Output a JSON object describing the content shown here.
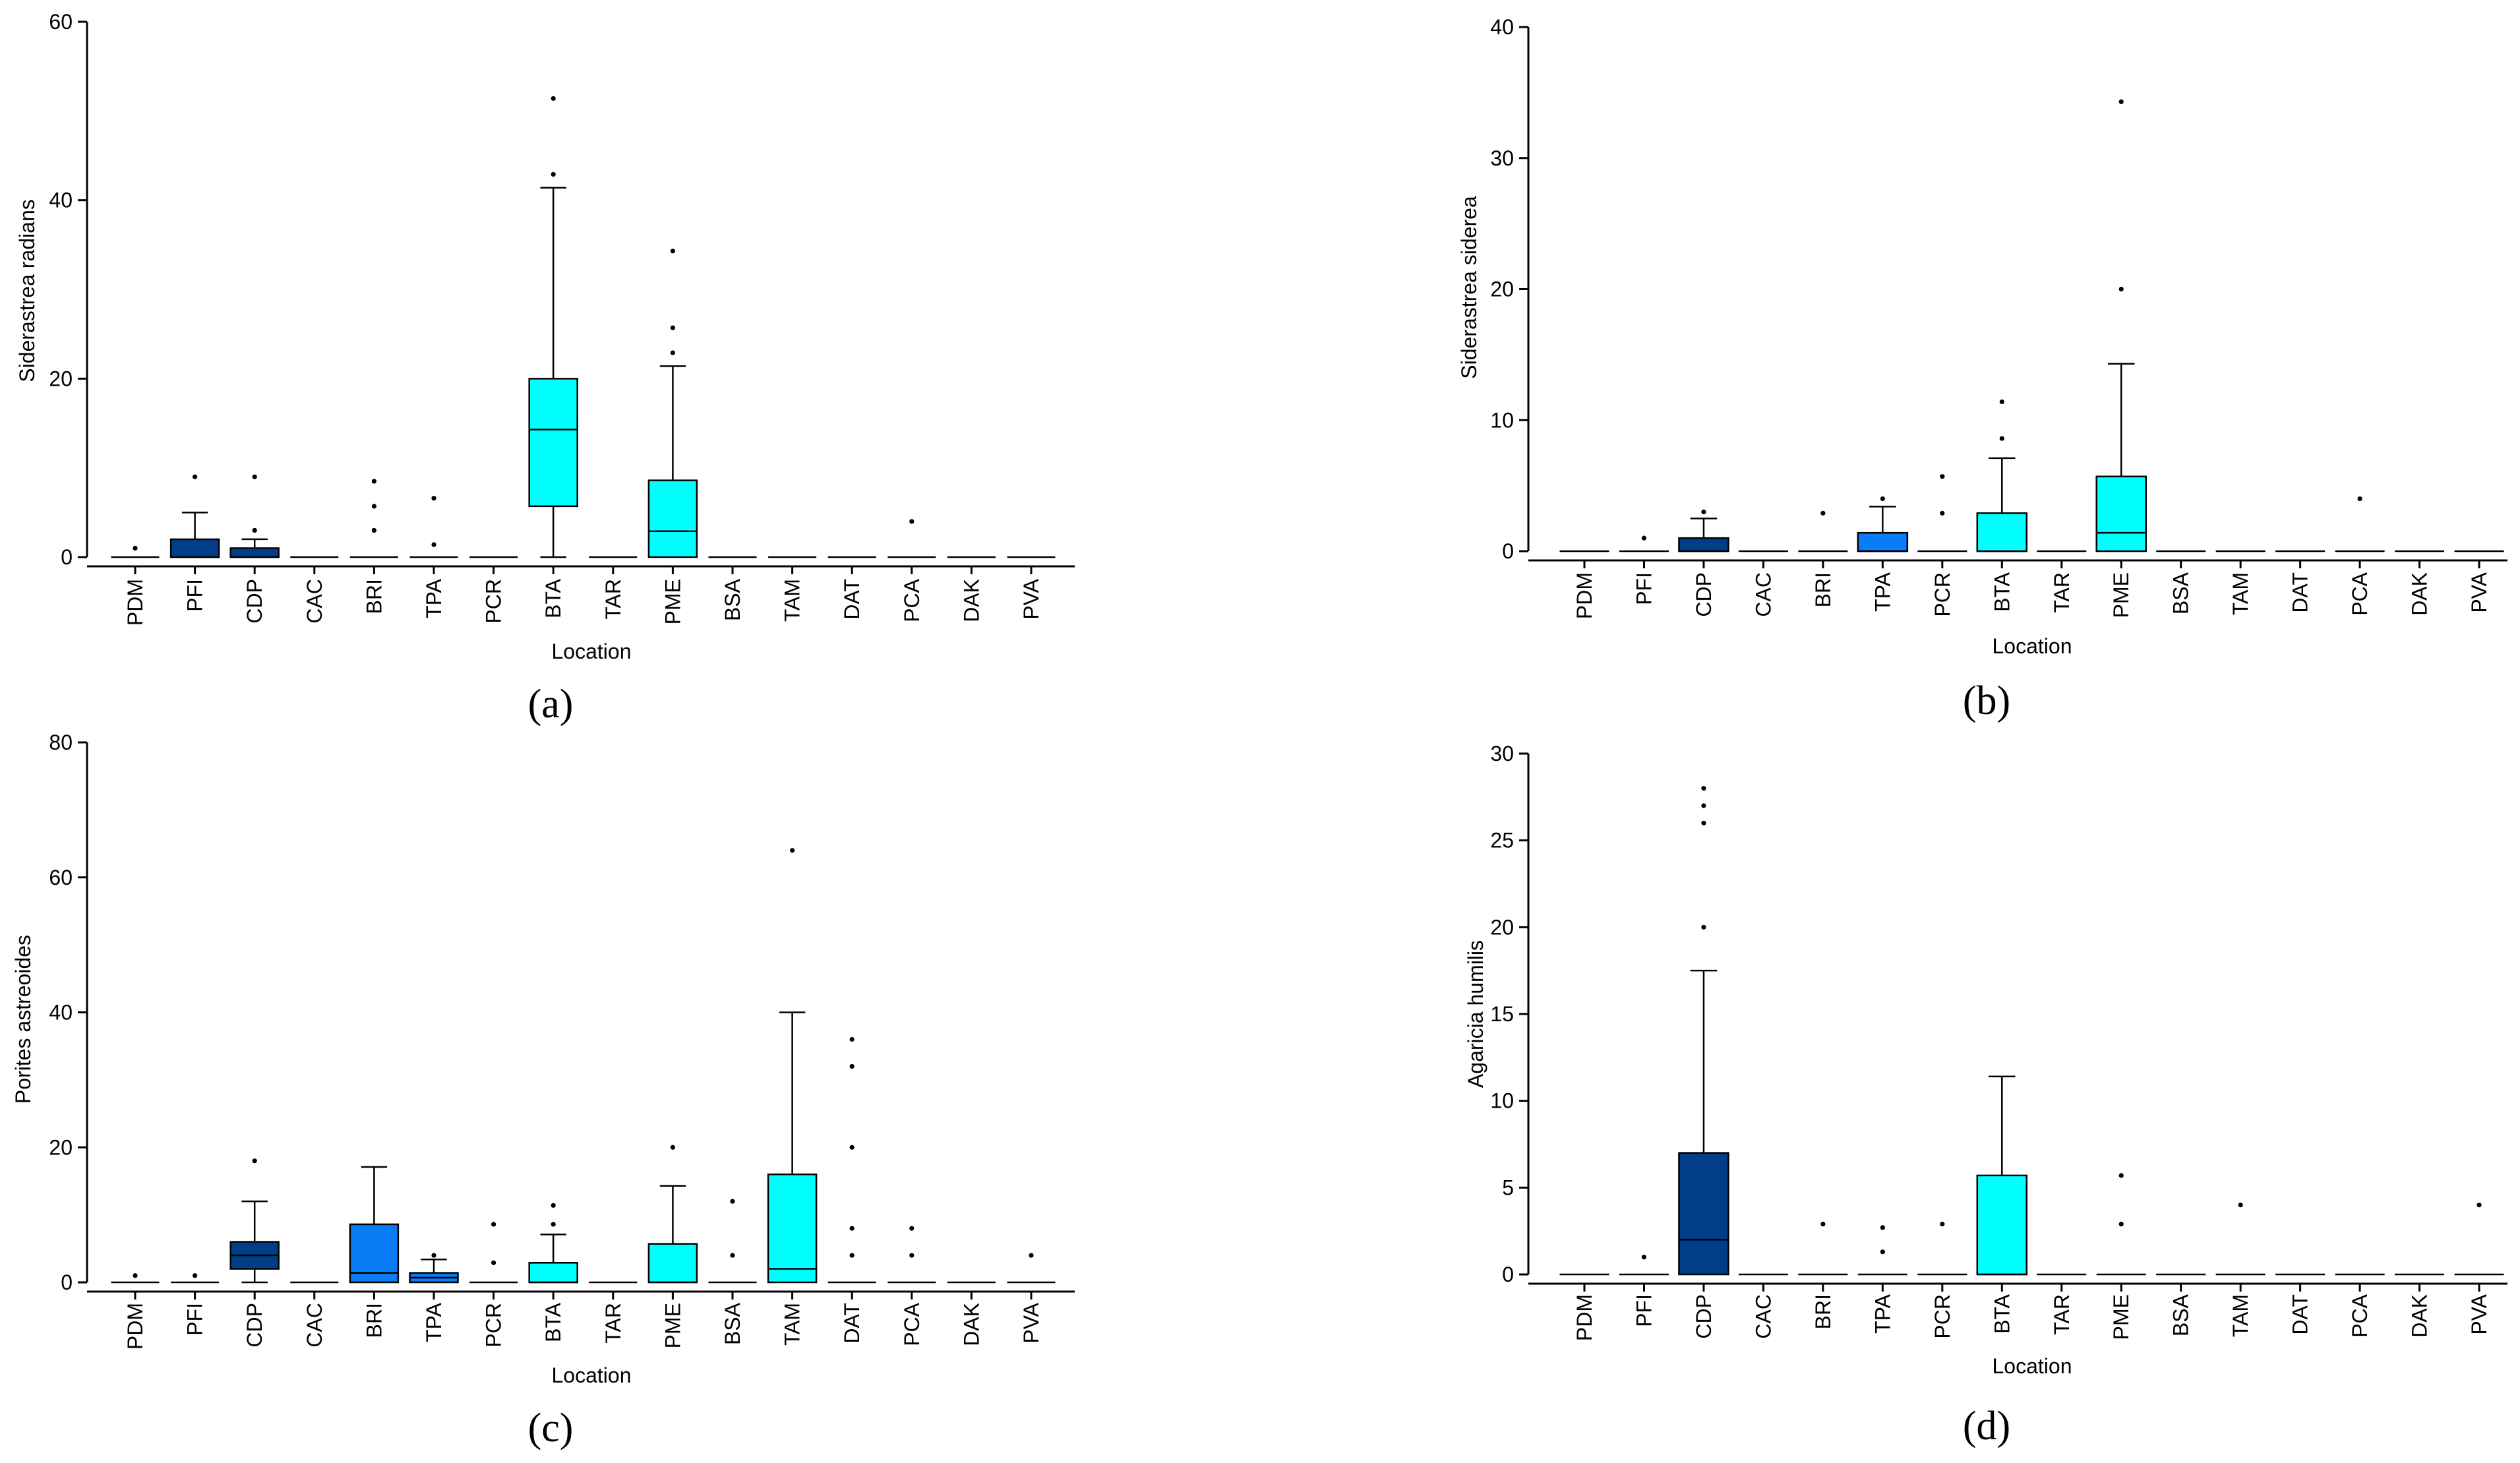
{
  "colors": {
    "dark_blue": "#003F87",
    "mid_blue": "#0A7CF5",
    "cyan": "#00FFFF",
    "line": "#000000"
  },
  "chart_data": [
    {
      "panel_label": "(a)",
      "type": "box",
      "title": "",
      "xlabel": "Location",
      "ylabel": "Siderastrea radians",
      "ylim": [
        0,
        60
      ],
      "yticks": [
        0,
        20,
        40,
        60
      ],
      "ytick_labels": [
        "0",
        "20",
        "40",
        "60"
      ],
      "categories": [
        "PDM",
        "PFI",
        "CDP",
        "CAC",
        "BRI",
        "TPA",
        "PCR",
        "BTA",
        "TAR",
        "PME",
        "BSA",
        "TAM",
        "DAT",
        "PCA",
        "DAK",
        "PVA"
      ],
      "boxes": [
        {
          "cat": "PDM",
          "q1": 0,
          "median": 0,
          "q3": 0,
          "whisker_low": 0,
          "whisker_high": 0,
          "outliers": [
            1
          ],
          "color": "dark_blue"
        },
        {
          "cat": "PFI",
          "q1": 0,
          "median": 0,
          "q3": 2,
          "whisker_low": 0,
          "whisker_high": 5,
          "outliers": [
            9
          ],
          "color": "dark_blue"
        },
        {
          "cat": "CDP",
          "q1": 0,
          "median": 0,
          "q3": 1,
          "whisker_low": 0,
          "whisker_high": 2,
          "outliers": [
            3,
            9
          ],
          "color": "dark_blue"
        },
        {
          "cat": "CAC",
          "q1": 0,
          "median": 0,
          "q3": 0,
          "whisker_low": 0,
          "whisker_high": 0,
          "outliers": [],
          "color": "dark_blue"
        },
        {
          "cat": "BRI",
          "q1": 0,
          "median": 0,
          "q3": 0,
          "whisker_low": 0,
          "whisker_high": 0,
          "outliers": [
            3,
            5.7,
            8.5
          ],
          "color": "mid_blue"
        },
        {
          "cat": "TPA",
          "q1": 0,
          "median": 0,
          "q3": 0,
          "whisker_low": 0,
          "whisker_high": 0,
          "outliers": [
            1.4,
            6.6
          ],
          "color": "mid_blue"
        },
        {
          "cat": "PCR",
          "q1": 0,
          "median": 0,
          "q3": 0,
          "whisker_low": 0,
          "whisker_high": 0,
          "outliers": [],
          "color": "mid_blue"
        },
        {
          "cat": "BTA",
          "q1": 5.7,
          "median": 14.3,
          "q3": 20,
          "whisker_low": 0,
          "whisker_high": 41.4,
          "outliers": [
            42.9,
            51.4
          ],
          "color": "cyan"
        },
        {
          "cat": "TAR",
          "q1": 0,
          "median": 0,
          "q3": 0,
          "whisker_low": 0,
          "whisker_high": 0,
          "outliers": [],
          "color": "cyan"
        },
        {
          "cat": "PME",
          "q1": 0,
          "median": 2.9,
          "q3": 8.6,
          "whisker_low": 0,
          "whisker_high": 21.4,
          "outliers": [
            22.9,
            25.7,
            34.3
          ],
          "color": "cyan"
        },
        {
          "cat": "BSA",
          "q1": 0,
          "median": 0,
          "q3": 0,
          "whisker_low": 0,
          "whisker_high": 0,
          "outliers": [],
          "color": "cyan"
        },
        {
          "cat": "TAM",
          "q1": 0,
          "median": 0,
          "q3": 0,
          "whisker_low": 0,
          "whisker_high": 0,
          "outliers": [],
          "color": "cyan"
        },
        {
          "cat": "DAT",
          "q1": 0,
          "median": 0,
          "q3": 0,
          "whisker_low": 0,
          "whisker_high": 0,
          "outliers": [],
          "color": "cyan"
        },
        {
          "cat": "PCA",
          "q1": 0,
          "median": 0,
          "q3": 0,
          "whisker_low": 0,
          "whisker_high": 0,
          "outliers": [
            4
          ],
          "color": "cyan"
        },
        {
          "cat": "DAK",
          "q1": 0,
          "median": 0,
          "q3": 0,
          "whisker_low": 0,
          "whisker_high": 0,
          "outliers": [],
          "color": "cyan"
        },
        {
          "cat": "PVA",
          "q1": 0,
          "median": 0,
          "q3": 0,
          "whisker_low": 0,
          "whisker_high": 0,
          "outliers": [],
          "color": "cyan"
        }
      ]
    },
    {
      "panel_label": "(b)",
      "type": "box",
      "title": "",
      "xlabel": "Location",
      "ylabel": "Siderastrea siderea",
      "ylim": [
        0,
        40
      ],
      "yticks": [
        0,
        10,
        20,
        30,
        40
      ],
      "ytick_labels": [
        "0",
        "10",
        "20",
        "30",
        "40"
      ],
      "categories": [
        "PDM",
        "PFI",
        "CDP",
        "CAC",
        "BRI",
        "TPA",
        "PCR",
        "BTA",
        "TAR",
        "PME",
        "BSA",
        "TAM",
        "DAT",
        "PCA",
        "DAK",
        "PVA"
      ],
      "boxes": [
        {
          "cat": "PDM",
          "q1": 0,
          "median": 0,
          "q3": 0,
          "whisker_low": 0,
          "whisker_high": 0,
          "outliers": [],
          "color": "dark_blue"
        },
        {
          "cat": "PFI",
          "q1": 0,
          "median": 0,
          "q3": 0,
          "whisker_low": 0,
          "whisker_high": 0,
          "outliers": [
            1
          ],
          "color": "dark_blue"
        },
        {
          "cat": "CDP",
          "q1": 0,
          "median": 0,
          "q3": 1,
          "whisker_low": 0,
          "whisker_high": 2.5,
          "outliers": [
            3
          ],
          "color": "dark_blue"
        },
        {
          "cat": "CAC",
          "q1": 0,
          "median": 0,
          "q3": 0,
          "whisker_low": 0,
          "whisker_high": 0,
          "outliers": [],
          "color": "dark_blue"
        },
        {
          "cat": "BRI",
          "q1": 0,
          "median": 0,
          "q3": 0,
          "whisker_low": 0,
          "whisker_high": 0,
          "outliers": [
            2.9
          ],
          "color": "mid_blue"
        },
        {
          "cat": "TPA",
          "q1": 0,
          "median": 0,
          "q3": 1.4,
          "whisker_low": 0,
          "whisker_high": 3.4,
          "outliers": [
            4
          ],
          "color": "mid_blue"
        },
        {
          "cat": "PCR",
          "q1": 0,
          "median": 0,
          "q3": 0,
          "whisker_low": 0,
          "whisker_high": 0,
          "outliers": [
            2.9,
            5.7
          ],
          "color": "mid_blue"
        },
        {
          "cat": "BTA",
          "q1": 0,
          "median": 0,
          "q3": 2.9,
          "whisker_low": 0,
          "whisker_high": 7.1,
          "outliers": [
            8.6,
            11.4
          ],
          "color": "cyan"
        },
        {
          "cat": "TAR",
          "q1": 0,
          "median": 0,
          "q3": 0,
          "whisker_low": 0,
          "whisker_high": 0,
          "outliers": [],
          "color": "cyan"
        },
        {
          "cat": "PME",
          "q1": 0,
          "median": 1.4,
          "q3": 5.7,
          "whisker_low": 0,
          "whisker_high": 14.3,
          "outliers": [
            20,
            34.3
          ],
          "color": "cyan"
        },
        {
          "cat": "BSA",
          "q1": 0,
          "median": 0,
          "q3": 0,
          "whisker_low": 0,
          "whisker_high": 0,
          "outliers": [],
          "color": "cyan"
        },
        {
          "cat": "TAM",
          "q1": 0,
          "median": 0,
          "q3": 0,
          "whisker_low": 0,
          "whisker_high": 0,
          "outliers": [],
          "color": "cyan"
        },
        {
          "cat": "DAT",
          "q1": 0,
          "median": 0,
          "q3": 0,
          "whisker_low": 0,
          "whisker_high": 0,
          "outliers": [],
          "color": "cyan"
        },
        {
          "cat": "PCA",
          "q1": 0,
          "median": 0,
          "q3": 0,
          "whisker_low": 0,
          "whisker_high": 0,
          "outliers": [
            4
          ],
          "color": "cyan"
        },
        {
          "cat": "DAK",
          "q1": 0,
          "median": 0,
          "q3": 0,
          "whisker_low": 0,
          "whisker_high": 0,
          "outliers": [],
          "color": "cyan"
        },
        {
          "cat": "PVA",
          "q1": 0,
          "median": 0,
          "q3": 0,
          "whisker_low": 0,
          "whisker_high": 0,
          "outliers": [],
          "color": "cyan"
        }
      ]
    },
    {
      "panel_label": "(c)",
      "type": "box",
      "title": "",
      "xlabel": "Location",
      "ylabel": "Porites astreoides",
      "ylim": [
        0,
        80
      ],
      "yticks": [
        0,
        20,
        40,
        60,
        80
      ],
      "ytick_labels": [
        "0",
        "20",
        "40",
        "60",
        "80"
      ],
      "categories": [
        "PDM",
        "PFI",
        "CDP",
        "CAC",
        "BRI",
        "TPA",
        "PCR",
        "BTA",
        "TAR",
        "PME",
        "BSA",
        "TAM",
        "DAT",
        "PCA",
        "DAK",
        "PVA"
      ],
      "boxes": [
        {
          "cat": "PDM",
          "q1": 0,
          "median": 0,
          "q3": 0,
          "whisker_low": 0,
          "whisker_high": 0,
          "outliers": [
            1
          ],
          "color": "dark_blue"
        },
        {
          "cat": "PFI",
          "q1": 0,
          "median": 0,
          "q3": 0,
          "whisker_low": 0,
          "whisker_high": 0,
          "outliers": [
            1
          ],
          "color": "dark_blue"
        },
        {
          "cat": "CDP",
          "q1": 2,
          "median": 4,
          "q3": 6,
          "whisker_low": 0,
          "whisker_high": 12,
          "outliers": [
            18
          ],
          "color": "dark_blue"
        },
        {
          "cat": "CAC",
          "q1": 0,
          "median": 0,
          "q3": 0,
          "whisker_low": 0,
          "whisker_high": 0,
          "outliers": [],
          "color": "dark_blue"
        },
        {
          "cat": "BRI",
          "q1": 0,
          "median": 1.4,
          "q3": 8.6,
          "whisker_low": 0,
          "whisker_high": 17.1,
          "outliers": [],
          "color": "mid_blue"
        },
        {
          "cat": "TPA",
          "q1": 0,
          "median": 0.7,
          "q3": 1.4,
          "whisker_low": 0,
          "whisker_high": 3.4,
          "outliers": [
            4
          ],
          "color": "mid_blue"
        },
        {
          "cat": "PCR",
          "q1": 0,
          "median": 0,
          "q3": 0,
          "whisker_low": 0,
          "whisker_high": 0,
          "outliers": [
            2.9,
            8.6
          ],
          "color": "mid_blue"
        },
        {
          "cat": "BTA",
          "q1": 0,
          "median": 0,
          "q3": 2.9,
          "whisker_low": 0,
          "whisker_high": 7.1,
          "outliers": [
            8.6,
            11.4
          ],
          "color": "cyan"
        },
        {
          "cat": "TAR",
          "q1": 0,
          "median": 0,
          "q3": 0,
          "whisker_low": 0,
          "whisker_high": 0,
          "outliers": [],
          "color": "cyan"
        },
        {
          "cat": "PME",
          "q1": 0,
          "median": 0,
          "q3": 5.7,
          "whisker_low": 0,
          "whisker_high": 14.3,
          "outliers": [
            20
          ],
          "color": "cyan"
        },
        {
          "cat": "BSA",
          "q1": 0,
          "median": 0,
          "q3": 0,
          "whisker_low": 0,
          "whisker_high": 0,
          "outliers": [
            4,
            12
          ],
          "color": "cyan"
        },
        {
          "cat": "TAM",
          "q1": 0,
          "median": 2,
          "q3": 16,
          "whisker_low": 0,
          "whisker_high": 40,
          "outliers": [
            64
          ],
          "color": "cyan"
        },
        {
          "cat": "DAT",
          "q1": 0,
          "median": 0,
          "q3": 0,
          "whisker_low": 0,
          "whisker_high": 0,
          "outliers": [
            4,
            8,
            20,
            32,
            36
          ],
          "color": "cyan"
        },
        {
          "cat": "PCA",
          "q1": 0,
          "median": 0,
          "q3": 0,
          "whisker_low": 0,
          "whisker_high": 0,
          "outliers": [
            4,
            8
          ],
          "color": "cyan"
        },
        {
          "cat": "DAK",
          "q1": 0,
          "median": 0,
          "q3": 0,
          "whisker_low": 0,
          "whisker_high": 0,
          "outliers": [],
          "color": "cyan"
        },
        {
          "cat": "PVA",
          "q1": 0,
          "median": 0,
          "q3": 0,
          "whisker_low": 0,
          "whisker_high": 0,
          "outliers": [
            4
          ],
          "color": "cyan"
        }
      ]
    },
    {
      "panel_label": "(d)",
      "type": "box",
      "title": "",
      "xlabel": "Location",
      "ylabel": "Agaricia humilis",
      "ylim": [
        0,
        30
      ],
      "yticks": [
        0,
        5,
        10,
        15,
        20,
        25,
        30
      ],
      "ytick_labels": [
        "0",
        "5",
        "10",
        "15",
        "20",
        "25",
        "30"
      ],
      "categories": [
        "PDM",
        "PFI",
        "CDP",
        "CAC",
        "BRI",
        "TPA",
        "PCR",
        "BTA",
        "TAR",
        "PME",
        "BSA",
        "TAM",
        "DAT",
        "PCA",
        "DAK",
        "PVA"
      ],
      "boxes": [
        {
          "cat": "PDM",
          "q1": 0,
          "median": 0,
          "q3": 0,
          "whisker_low": 0,
          "whisker_high": 0,
          "outliers": [],
          "color": "dark_blue"
        },
        {
          "cat": "PFI",
          "q1": 0,
          "median": 0,
          "q3": 0,
          "whisker_low": 0,
          "whisker_high": 0,
          "outliers": [
            1
          ],
          "color": "dark_blue"
        },
        {
          "cat": "CDP",
          "q1": 0,
          "median": 2,
          "q3": 7,
          "whisker_low": 0,
          "whisker_high": 17.5,
          "outliers": [
            20,
            26,
            27,
            28
          ],
          "color": "dark_blue"
        },
        {
          "cat": "CAC",
          "q1": 0,
          "median": 0,
          "q3": 0,
          "whisker_low": 0,
          "whisker_high": 0,
          "outliers": [],
          "color": "dark_blue"
        },
        {
          "cat": "BRI",
          "q1": 0,
          "median": 0,
          "q3": 0,
          "whisker_low": 0,
          "whisker_high": 0,
          "outliers": [
            2.9
          ],
          "color": "mid_blue"
        },
        {
          "cat": "TPA",
          "q1": 0,
          "median": 0,
          "q3": 0,
          "whisker_low": 0,
          "whisker_high": 0,
          "outliers": [
            1.3,
            2.7
          ],
          "color": "mid_blue"
        },
        {
          "cat": "PCR",
          "q1": 0,
          "median": 0,
          "q3": 0,
          "whisker_low": 0,
          "whisker_high": 0,
          "outliers": [
            2.9
          ],
          "color": "mid_blue"
        },
        {
          "cat": "BTA",
          "q1": 0,
          "median": 0,
          "q3": 5.7,
          "whisker_low": 0,
          "whisker_high": 11.4,
          "outliers": [],
          "color": "cyan"
        },
        {
          "cat": "TAR",
          "q1": 0,
          "median": 0,
          "q3": 0,
          "whisker_low": 0,
          "whisker_high": 0,
          "outliers": [],
          "color": "cyan"
        },
        {
          "cat": "PME",
          "q1": 0,
          "median": 0,
          "q3": 0,
          "whisker_low": 0,
          "whisker_high": 0,
          "outliers": [
            2.9,
            5.7
          ],
          "color": "cyan"
        },
        {
          "cat": "BSA",
          "q1": 0,
          "median": 0,
          "q3": 0,
          "whisker_low": 0,
          "whisker_high": 0,
          "outliers": [],
          "color": "cyan"
        },
        {
          "cat": "TAM",
          "q1": 0,
          "median": 0,
          "q3": 0,
          "whisker_low": 0,
          "whisker_high": 0,
          "outliers": [
            4
          ],
          "color": "cyan"
        },
        {
          "cat": "DAT",
          "q1": 0,
          "median": 0,
          "q3": 0,
          "whisker_low": 0,
          "whisker_high": 0,
          "outliers": [],
          "color": "cyan"
        },
        {
          "cat": "PCA",
          "q1": 0,
          "median": 0,
          "q3": 0,
          "whisker_low": 0,
          "whisker_high": 0,
          "outliers": [],
          "color": "cyan"
        },
        {
          "cat": "DAK",
          "q1": 0,
          "median": 0,
          "q3": 0,
          "whisker_low": 0,
          "whisker_high": 0,
          "outliers": [],
          "color": "cyan"
        },
        {
          "cat": "PVA",
          "q1": 0,
          "median": 0,
          "q3": 0,
          "whisker_low": 0,
          "whisker_high": 0,
          "outliers": [
            4
          ],
          "color": "cyan"
        }
      ]
    }
  ]
}
